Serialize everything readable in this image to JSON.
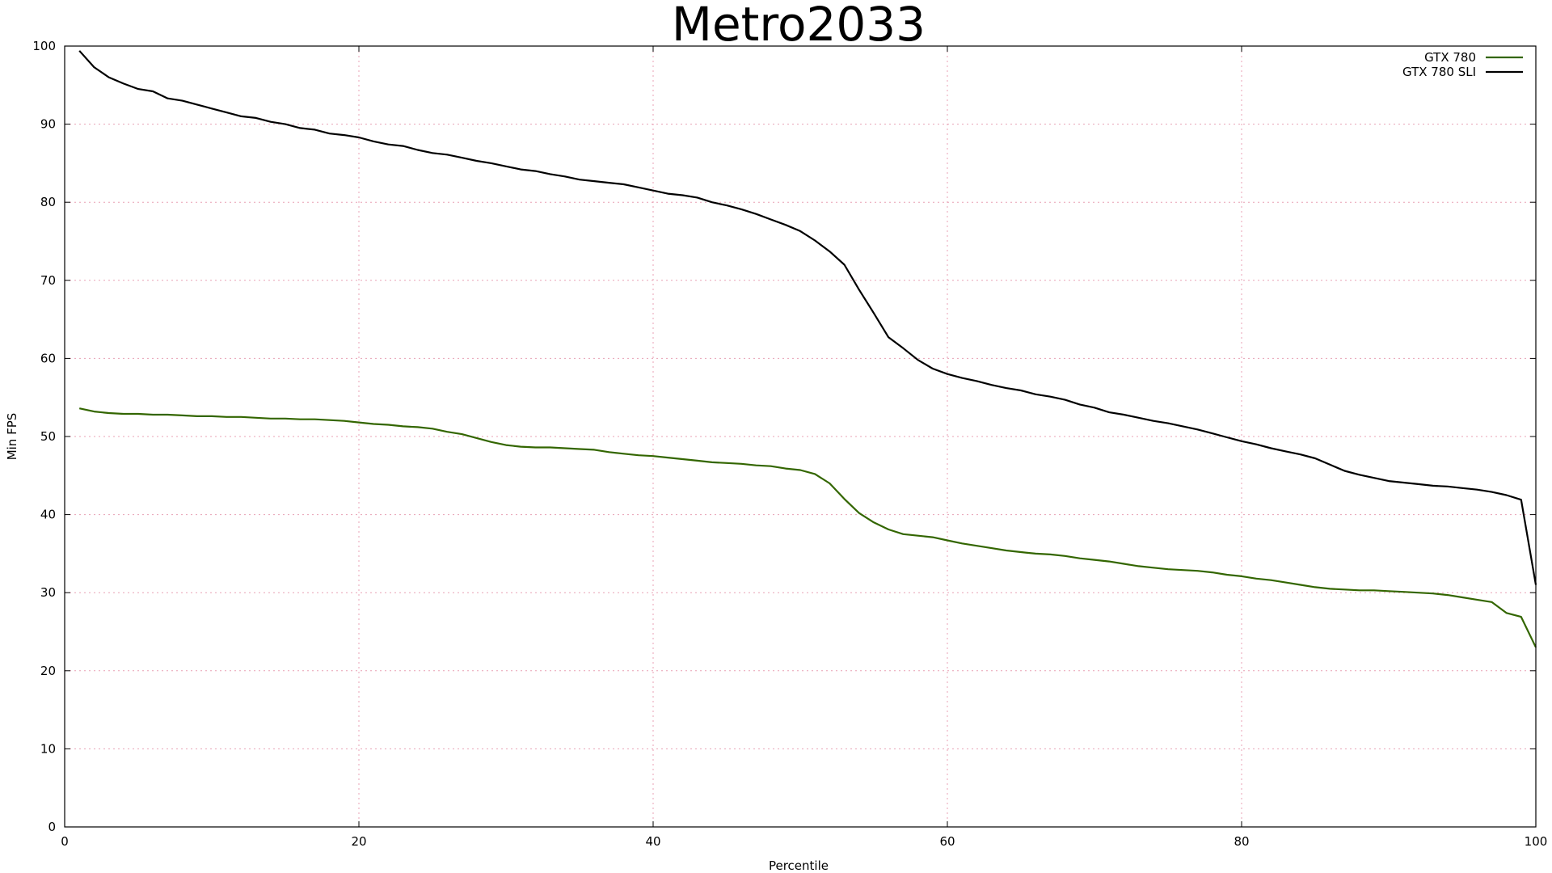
{
  "chart_data": {
    "type": "line",
    "title": "Metro2033",
    "xlabel": "Percentile",
    "ylabel": "Min FPS",
    "xlim": [
      0,
      100
    ],
    "ylim": [
      0,
      100
    ],
    "xticks": [
      0,
      20,
      40,
      60,
      80,
      100
    ],
    "yticks": [
      0,
      10,
      20,
      30,
      40,
      50,
      60,
      70,
      80,
      90,
      100
    ],
    "grid": true,
    "legend_position": "top-right",
    "series": [
      {
        "name": "GTX 780",
        "color": "#336600",
        "points": [
          [
            1,
            53.6
          ],
          [
            2,
            53.2
          ],
          [
            3,
            53.0
          ],
          [
            4,
            52.9
          ],
          [
            5,
            52.9
          ],
          [
            6,
            52.8
          ],
          [
            7,
            52.8
          ],
          [
            8,
            52.7
          ],
          [
            9,
            52.6
          ],
          [
            10,
            52.6
          ],
          [
            11,
            52.5
          ],
          [
            12,
            52.5
          ],
          [
            13,
            52.4
          ],
          [
            14,
            52.3
          ],
          [
            15,
            52.3
          ],
          [
            16,
            52.2
          ],
          [
            17,
            52.2
          ],
          [
            18,
            52.1
          ],
          [
            19,
            52.0
          ],
          [
            20,
            51.8
          ],
          [
            21,
            51.6
          ],
          [
            22,
            51.5
          ],
          [
            23,
            51.3
          ],
          [
            24,
            51.2
          ],
          [
            25,
            51.0
          ],
          [
            26,
            50.6
          ],
          [
            27,
            50.3
          ],
          [
            28,
            49.8
          ],
          [
            29,
            49.3
          ],
          [
            30,
            48.9
          ],
          [
            31,
            48.7
          ],
          [
            32,
            48.6
          ],
          [
            33,
            48.6
          ],
          [
            34,
            48.5
          ],
          [
            35,
            48.4
          ],
          [
            36,
            48.3
          ],
          [
            37,
            48.0
          ],
          [
            38,
            47.8
          ],
          [
            39,
            47.6
          ],
          [
            40,
            47.5
          ],
          [
            41,
            47.3
          ],
          [
            42,
            47.1
          ],
          [
            43,
            46.9
          ],
          [
            44,
            46.7
          ],
          [
            45,
            46.6
          ],
          [
            46,
            46.5
          ],
          [
            47,
            46.3
          ],
          [
            48,
            46.2
          ],
          [
            49,
            45.9
          ],
          [
            50,
            45.7
          ],
          [
            51,
            45.2
          ],
          [
            52,
            44.0
          ],
          [
            53,
            42.0
          ],
          [
            54,
            40.2
          ],
          [
            55,
            39.0
          ],
          [
            56,
            38.1
          ],
          [
            57,
            37.5
          ],
          [
            58,
            37.3
          ],
          [
            59,
            37.1
          ],
          [
            60,
            36.7
          ],
          [
            61,
            36.3
          ],
          [
            62,
            36.0
          ],
          [
            63,
            35.7
          ],
          [
            64,
            35.4
          ],
          [
            65,
            35.2
          ],
          [
            66,
            35.0
          ],
          [
            67,
            34.9
          ],
          [
            68,
            34.7
          ],
          [
            69,
            34.4
          ],
          [
            70,
            34.2
          ],
          [
            71,
            34.0
          ],
          [
            72,
            33.7
          ],
          [
            73,
            33.4
          ],
          [
            74,
            33.2
          ],
          [
            75,
            33.0
          ],
          [
            76,
            32.9
          ],
          [
            77,
            32.8
          ],
          [
            78,
            32.6
          ],
          [
            79,
            32.3
          ],
          [
            80,
            32.1
          ],
          [
            81,
            31.8
          ],
          [
            82,
            31.6
          ],
          [
            83,
            31.3
          ],
          [
            84,
            31.0
          ],
          [
            85,
            30.7
          ],
          [
            86,
            30.5
          ],
          [
            87,
            30.4
          ],
          [
            88,
            30.3
          ],
          [
            89,
            30.3
          ],
          [
            90,
            30.2
          ],
          [
            91,
            30.1
          ],
          [
            92,
            30.0
          ],
          [
            93,
            29.9
          ],
          [
            94,
            29.7
          ],
          [
            95,
            29.4
          ],
          [
            96,
            29.1
          ],
          [
            97,
            28.8
          ],
          [
            98,
            27.4
          ],
          [
            99,
            26.9
          ],
          [
            100,
            23.0
          ]
        ]
      },
      {
        "name": "GTX 780 SLI",
        "color": "#000000",
        "points": [
          [
            1,
            99.4
          ],
          [
            2,
            97.3
          ],
          [
            3,
            96.0
          ],
          [
            4,
            95.2
          ],
          [
            5,
            94.5
          ],
          [
            6,
            94.2
          ],
          [
            7,
            93.3
          ],
          [
            8,
            93.0
          ],
          [
            9,
            92.5
          ],
          [
            10,
            92.0
          ],
          [
            11,
            91.5
          ],
          [
            12,
            91.0
          ],
          [
            13,
            90.8
          ],
          [
            14,
            90.3
          ],
          [
            15,
            90.0
          ],
          [
            16,
            89.5
          ],
          [
            17,
            89.3
          ],
          [
            18,
            88.8
          ],
          [
            19,
            88.6
          ],
          [
            20,
            88.3
          ],
          [
            21,
            87.8
          ],
          [
            22,
            87.4
          ],
          [
            23,
            87.2
          ],
          [
            24,
            86.7
          ],
          [
            25,
            86.3
          ],
          [
            26,
            86.1
          ],
          [
            27,
            85.7
          ],
          [
            28,
            85.3
          ],
          [
            29,
            85.0
          ],
          [
            30,
            84.6
          ],
          [
            31,
            84.2
          ],
          [
            32,
            84.0
          ],
          [
            33,
            83.6
          ],
          [
            34,
            83.3
          ],
          [
            35,
            82.9
          ],
          [
            36,
            82.7
          ],
          [
            37,
            82.5
          ],
          [
            38,
            82.3
          ],
          [
            39,
            81.9
          ],
          [
            40,
            81.5
          ],
          [
            41,
            81.1
          ],
          [
            42,
            80.9
          ],
          [
            43,
            80.6
          ],
          [
            44,
            80.0
          ],
          [
            45,
            79.6
          ],
          [
            46,
            79.1
          ],
          [
            47,
            78.5
          ],
          [
            48,
            77.8
          ],
          [
            49,
            77.1
          ],
          [
            50,
            76.3
          ],
          [
            51,
            75.1
          ],
          [
            52,
            73.7
          ],
          [
            53,
            72.0
          ],
          [
            54,
            68.8
          ],
          [
            55,
            65.8
          ],
          [
            56,
            62.7
          ],
          [
            57,
            61.3
          ],
          [
            58,
            59.8
          ],
          [
            59,
            58.7
          ],
          [
            60,
            58.0
          ],
          [
            61,
            57.5
          ],
          [
            62,
            57.1
          ],
          [
            63,
            56.6
          ],
          [
            64,
            56.2
          ],
          [
            65,
            55.9
          ],
          [
            66,
            55.4
          ],
          [
            67,
            55.1
          ],
          [
            68,
            54.7
          ],
          [
            69,
            54.1
          ],
          [
            70,
            53.7
          ],
          [
            71,
            53.1
          ],
          [
            72,
            52.8
          ],
          [
            73,
            52.4
          ],
          [
            74,
            52.0
          ],
          [
            75,
            51.7
          ],
          [
            76,
            51.3
          ],
          [
            77,
            50.9
          ],
          [
            78,
            50.4
          ],
          [
            79,
            49.9
          ],
          [
            80,
            49.4
          ],
          [
            81,
            49.0
          ],
          [
            82,
            48.5
          ],
          [
            83,
            48.1
          ],
          [
            84,
            47.7
          ],
          [
            85,
            47.2
          ],
          [
            86,
            46.4
          ],
          [
            87,
            45.6
          ],
          [
            88,
            45.1
          ],
          [
            89,
            44.7
          ],
          [
            90,
            44.3
          ],
          [
            91,
            44.1
          ],
          [
            92,
            43.9
          ],
          [
            93,
            43.7
          ],
          [
            94,
            43.6
          ],
          [
            95,
            43.4
          ],
          [
            96,
            43.2
          ],
          [
            97,
            42.9
          ],
          [
            98,
            42.5
          ],
          [
            99,
            41.9
          ],
          [
            100,
            31.0
          ]
        ]
      }
    ]
  }
}
